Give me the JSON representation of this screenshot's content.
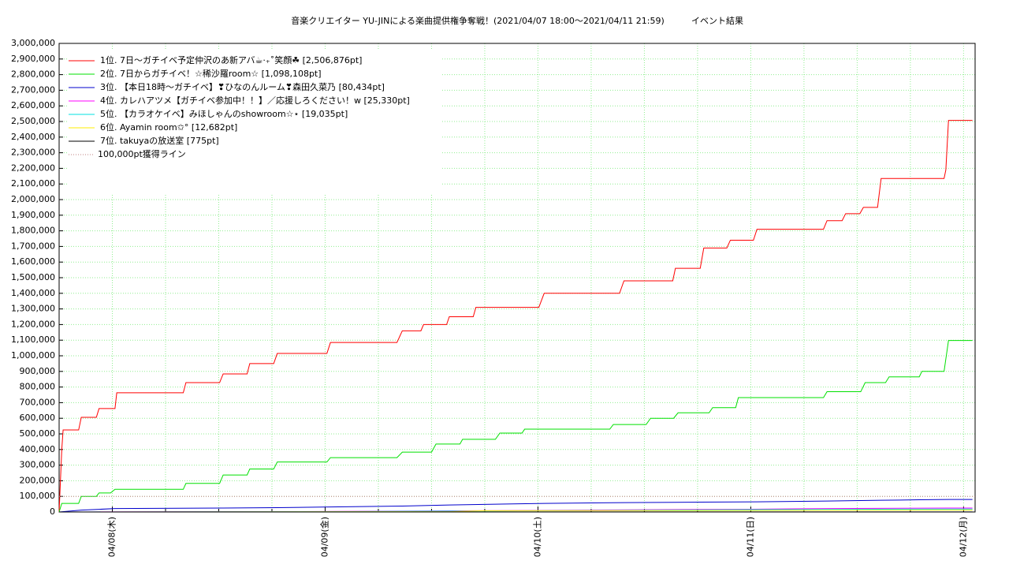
{
  "chart_data": {
    "type": "line",
    "title": "音楽クリエイター YU-JINによる楽曲提供権争奪戦！(2021/04/07 18:00〜2021/04/11 21:59)",
    "subtitle": "イベント結果",
    "xlim": [
      0,
      103.3
    ],
    "xticks": [
      {
        "value": 6,
        "label": "04/08(木)"
      },
      {
        "value": 30,
        "label": "04/09(金)"
      },
      {
        "value": 54,
        "label": "04/10(土)"
      },
      {
        "value": 78,
        "label": "04/11(日)"
      },
      {
        "value": 102,
        "label": "04/12(月)"
      }
    ],
    "x_minor_ticks": [
      12,
      18,
      24,
      36,
      42,
      48,
      60,
      66,
      72,
      84,
      90,
      96
    ],
    "ylim": [
      0,
      3000000
    ],
    "yticks": [
      0,
      {
        "value": 100000,
        "label": "100,000"
      },
      {
        "value": 200000,
        "label": "200,000"
      },
      {
        "value": 300000,
        "label": "300,000"
      },
      {
        "value": 400000,
        "label": "400,000"
      },
      {
        "value": 500000,
        "label": "500,000"
      },
      {
        "value": 600000,
        "label": "600,000"
      },
      {
        "value": 700000,
        "label": "700,000"
      },
      {
        "value": 800000,
        "label": "800,000"
      },
      {
        "value": 900000,
        "label": "900,000"
      },
      {
        "value": 1000000,
        "label": "1,000,000"
      },
      {
        "value": 1100000,
        "label": "1,100,000"
      },
      {
        "value": 1200000,
        "label": "1,200,000"
      },
      {
        "value": 1300000,
        "label": "1,300,000"
      },
      {
        "value": 1400000,
        "label": "1,400,000"
      },
      {
        "value": 1500000,
        "label": "1,500,000"
      },
      {
        "value": 1600000,
        "label": "1,600,000"
      },
      {
        "value": 1700000,
        "label": "1,700,000"
      },
      {
        "value": 1800000,
        "label": "1,800,000"
      },
      {
        "value": 1900000,
        "label": "1,900,000"
      },
      {
        "value": 2000000,
        "label": "2,000,000"
      },
      {
        "value": 2100000,
        "label": "2,100,000"
      },
      {
        "value": 2200000,
        "label": "2,200,000"
      },
      {
        "value": 2300000,
        "label": "2,300,000"
      },
      {
        "value": 2400000,
        "label": "2,400,000"
      },
      {
        "value": 2500000,
        "label": "2,500,000"
      },
      {
        "value": 2600000,
        "label": "2,600,000"
      },
      {
        "value": 2700000,
        "label": "2,700,000"
      },
      {
        "value": 2800000,
        "label": "2,800,000"
      },
      {
        "value": 2900000,
        "label": "2,900,000"
      },
      {
        "value": 3000000,
        "label": "3,000,000"
      }
    ],
    "grid": true,
    "grid_color": "#90ee90",
    "legend": "upper left",
    "series": [
      {
        "name": "1位. 7日〜ガチイベ予定仲沢のあ新アバ☕︎‧₊˚笑顔☘ [2,506,876pt]",
        "color": "#ff0000",
        "x": [
          0,
          0.3,
          0.45,
          2.2,
          2.5,
          4.2,
          4.5,
          6.3,
          6.5,
          14,
          14.3,
          18.1,
          18.5,
          21.2,
          21.5,
          24.2,
          24.6,
          30.2,
          30.6,
          38.1,
          38.7,
          40.8,
          41.1,
          43.7,
          44,
          46.7,
          47,
          54.1,
          54.7,
          63.2,
          63.7,
          69.2,
          69.5,
          72.3,
          72.7,
          75.3,
          75.7,
          78.3,
          78.7,
          86.2,
          86.6,
          88.3,
          88.7,
          90.3,
          90.7,
          92.3,
          92.7,
          99.8,
          100,
          100.3,
          103
        ],
        "values": [
          0,
          400000,
          525000,
          525000,
          606000,
          606000,
          662000,
          662000,
          763000,
          763000,
          828000,
          828000,
          884000,
          884000,
          950000,
          950000,
          1015000,
          1015000,
          1085000,
          1085000,
          1160000,
          1160000,
          1200000,
          1200000,
          1250000,
          1250000,
          1310000,
          1310000,
          1400000,
          1400000,
          1480000,
          1480000,
          1560000,
          1560000,
          1690000,
          1690000,
          1740000,
          1740000,
          1810000,
          1810000,
          1865000,
          1865000,
          1910000,
          1910000,
          1950000,
          1950000,
          2135000,
          2135000,
          2190000,
          2506876,
          2506876
        ]
      },
      {
        "name": "2位. 7日からガチイベ！☆稀沙羅room☆ [1,098,108pt]",
        "color": "#00e000",
        "x": [
          0,
          0.3,
          2.2,
          2.5,
          4.2,
          4.5,
          5.8,
          6.3,
          14,
          14.3,
          18.1,
          18.5,
          21.2,
          21.5,
          24.2,
          24.6,
          30.2,
          30.6,
          38.1,
          38.7,
          42,
          42.5,
          45.2,
          45.5,
          49.2,
          49.7,
          52.2,
          52.5,
          62.1,
          62.5,
          66.2,
          66.7,
          69.3,
          69.8,
          73.3,
          73.7,
          76.3,
          76.6,
          86.2,
          86.6,
          90.4,
          90.9,
          93.2,
          93.6,
          97,
          97.3,
          99.8,
          100.3,
          103
        ],
        "values": [
          0,
          55000,
          55000,
          100000,
          100000,
          122000,
          122000,
          145000,
          145000,
          183000,
          183000,
          237000,
          237000,
          275000,
          275000,
          320000,
          320000,
          348000,
          348000,
          383000,
          383000,
          435000,
          435000,
          465000,
          465000,
          505000,
          505000,
          530000,
          530000,
          560000,
          560000,
          600000,
          600000,
          635000,
          635000,
          668000,
          668000,
          732000,
          732000,
          770000,
          770000,
          828000,
          828000,
          865000,
          865000,
          900000,
          900000,
          1098108,
          1098108
        ]
      },
      {
        "name": "3位. 【本日18時〜ガチイベ】❣ひなのんルーム❣森田久菜乃 [80,434pt]",
        "color": "#0000cc",
        "x": [
          0,
          2.5,
          4.5,
          6.3,
          18.5,
          24.6,
          30.6,
          38.7,
          44,
          54.7,
          63.7,
          69.5,
          78.7,
          86.6,
          92.7,
          97,
          100.3,
          103
        ],
        "values": [
          0,
          12000,
          17000,
          22000,
          25000,
          28000,
          32000,
          38000,
          45000,
          55000,
          60000,
          62000,
          65000,
          70000,
          75000,
          78000,
          80434,
          80434
        ]
      },
      {
        "name": "4位. カレハアツメ【ガチイベ参加中！！】／応援しろください！w [25,330pt]",
        "color": "#ff00ff",
        "x": [
          0,
          30,
          54,
          78,
          87,
          100.3,
          103
        ],
        "values": [
          0,
          3000,
          10000,
          18000,
          22000,
          25330,
          25330
        ]
      },
      {
        "name": "5位. 【カラオケイベ】みほしゃんのshowroom☆⋆ [19,035pt]",
        "color": "#00e0e0",
        "x": [
          0,
          30,
          54,
          78,
          100.3,
          103
        ],
        "values": [
          0,
          2000,
          8000,
          15000,
          19035,
          19035
        ]
      },
      {
        "name": "6位. Ayamin room✩° [12,682pt]",
        "color": "#ffee00",
        "x": [
          0,
          44,
          48,
          78,
          100.3,
          103
        ],
        "values": [
          0,
          2000,
          8000,
          10000,
          12682,
          12682
        ]
      },
      {
        "name": "7位. takuyaの放送室 [775pt]",
        "color": "#000000",
        "x": [
          0,
          103
        ],
        "values": [
          0,
          775
        ]
      },
      {
        "name": "100,000pt獲得ライン",
        "color": "#c08080",
        "dashed": true,
        "x": [
          0,
          103.3
        ],
        "values": [
          100000,
          100000
        ]
      }
    ]
  }
}
